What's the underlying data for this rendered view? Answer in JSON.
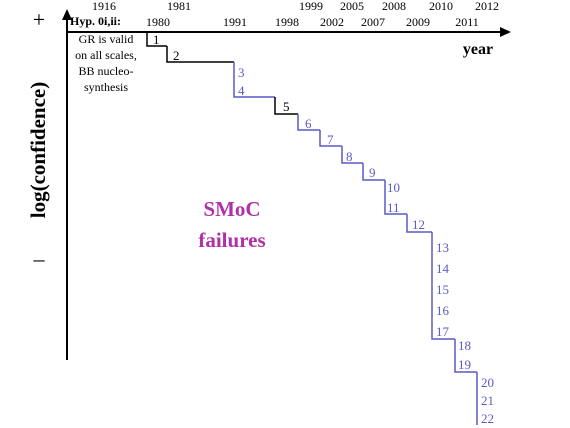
{
  "axes": {
    "y_label": "log(confidence)",
    "x_label": "year",
    "plus_sign": "+",
    "minus_sign": "–"
  },
  "hypothesis": {
    "label": "Hyp. 0i,ii:",
    "text_lines": [
      "GR is valid",
      "on all scales,",
      "BB nucleo-",
      "synthesis"
    ]
  },
  "years_top": [
    "1916",
    "1981",
    "1999",
    "2005",
    "2008",
    "2010",
    "2012"
  ],
  "years_bottom": [
    "1980",
    "1991",
    "1998",
    "2002",
    "2007",
    "2009",
    "2011"
  ],
  "steps": [
    {
      "n": "1",
      "color": "black"
    },
    {
      "n": "2",
      "color": "black"
    },
    {
      "n": "3",
      "color": "blue"
    },
    {
      "n": "4",
      "color": "blue"
    },
    {
      "n": "5",
      "color": "black"
    },
    {
      "n": "6",
      "color": "blue"
    },
    {
      "n": "7",
      "color": "blue"
    },
    {
      "n": "8",
      "color": "blue"
    },
    {
      "n": "9",
      "color": "blue"
    },
    {
      "n": "10",
      "color": "blue"
    },
    {
      "n": "11",
      "color": "blue"
    },
    {
      "n": "12",
      "color": "blue"
    },
    {
      "n": "13",
      "color": "blue"
    },
    {
      "n": "14",
      "color": "blue"
    },
    {
      "n": "15",
      "color": "blue"
    },
    {
      "n": "16",
      "color": "blue"
    },
    {
      "n": "17",
      "color": "blue"
    },
    {
      "n": "18",
      "color": "blue"
    },
    {
      "n": "19",
      "color": "blue"
    },
    {
      "n": "20",
      "color": "blue"
    },
    {
      "n": "21",
      "color": "blue"
    },
    {
      "n": "22",
      "color": "blue"
    }
  ],
  "center_title": [
    "SMoC",
    "failures"
  ],
  "colors": {
    "black": "#000000",
    "blue": "#5a5ac8",
    "title": "#b030a8"
  }
}
